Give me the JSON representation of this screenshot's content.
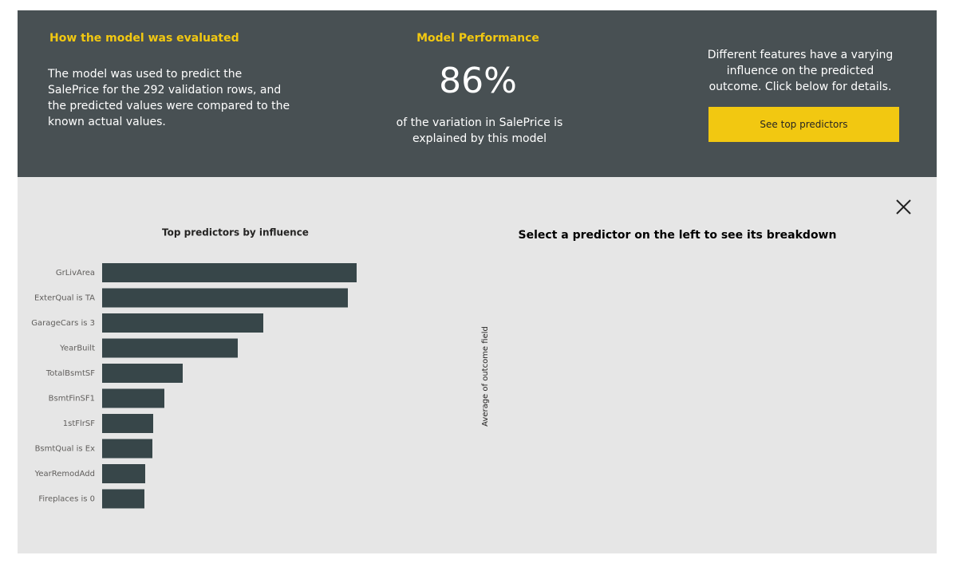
{
  "header": {
    "evaluation": {
      "title": "How the model was evaluated",
      "text": "The model was used to predict the SalePrice for the 292 validation rows, and the predicted values were compared to the known actual values."
    },
    "performance": {
      "title": "Model Performance",
      "metric": "86%",
      "caption": "of the variation in SalePrice is explained by this model"
    },
    "predictors": {
      "text": "Different features have a varying influence on the predicted outcome. Click below for details.",
      "button": "See top predictors"
    }
  },
  "breakdown": {
    "title": "Select a predictor on the left to see its breakdown",
    "axis_label": "Average of outcome field"
  },
  "chart_data": {
    "type": "hbar",
    "title": "Top predictors by influence",
    "categories": [
      "GrLivArea",
      "ExterQual is TA",
      "GarageCars is 3",
      "YearBuilt",
      "TotalBsmtSF",
      "BsmtFinSF1",
      "1stFlrSF",
      "BsmtQual is Ex",
      "YearRemodAdd",
      "Fireplaces is 0"
    ],
    "values": [
      319,
      308,
      202,
      170,
      101,
      78,
      64,
      63,
      54,
      53
    ],
    "color": "#374649",
    "xlim": [
      0,
      320
    ]
  }
}
